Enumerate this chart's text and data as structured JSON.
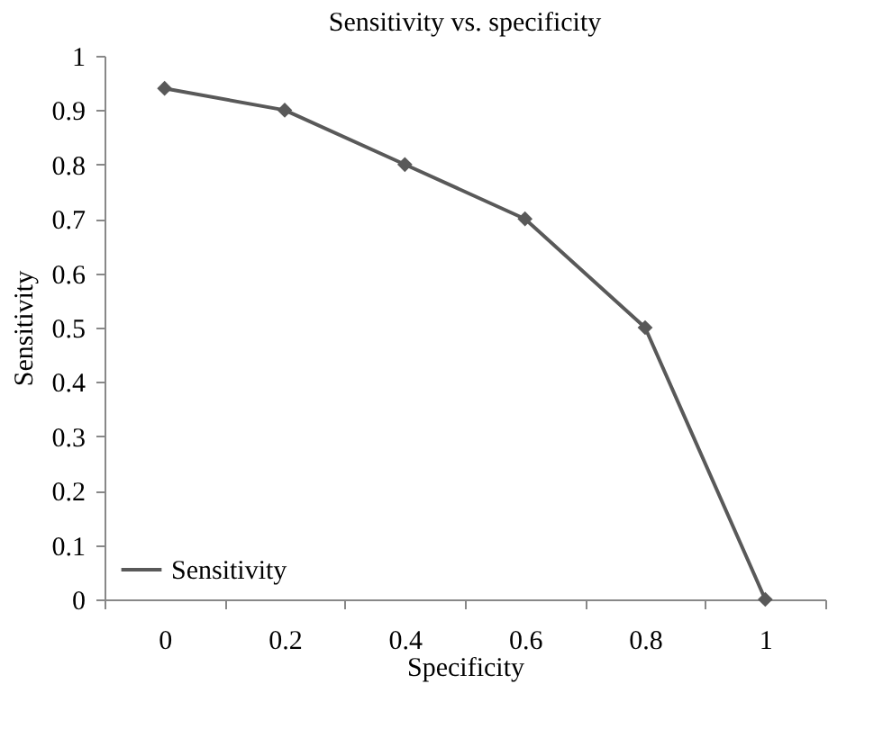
{
  "chart_data": {
    "type": "line",
    "title": "Sensitivity vs. specificity",
    "xlabel": "Specificity",
    "ylabel": "Sensitivity",
    "categories": [
      "0",
      "0.2",
      "0.4",
      "0.6",
      "0.8",
      "1"
    ],
    "series": [
      {
        "name": "Sensitivity",
        "color": "#595959",
        "values": [
          0.94,
          0.9,
          0.8,
          0.7,
          0.5,
          0
        ]
      }
    ],
    "ylim": [
      0,
      1
    ],
    "yticks": [
      0,
      0.1,
      0.2,
      0.3,
      0.4,
      0.5,
      0.6,
      0.7,
      0.8,
      0.9,
      1
    ],
    "grid": false,
    "legend": "bottom left",
    "marker": "diamond",
    "line_style": "solid"
  }
}
